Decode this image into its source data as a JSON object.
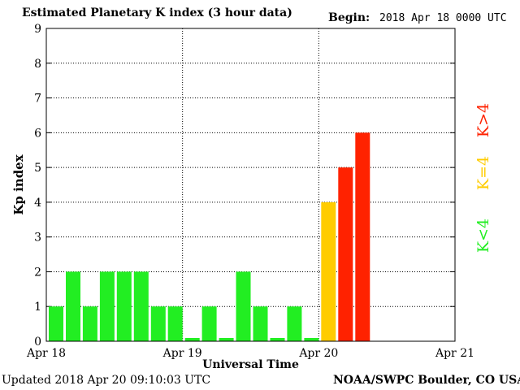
{
  "header": {
    "title": "Estimated Planetary K index (3 hour data)",
    "begin_label": "Begin:",
    "begin_value": "2018 Apr 18 0000 UTC"
  },
  "footer": {
    "updated": "Updated 2018 Apr 20 09:10:03 UTC",
    "source": "NOAA/SWPC Boulder, CO USA"
  },
  "legend": [
    {
      "label": "K<4",
      "color": "#22ee22"
    },
    {
      "label": "K=4",
      "color": "#ffcc00"
    },
    {
      "label": "K>4",
      "color": "#ff2200"
    }
  ],
  "colors": {
    "low": "#22ee22",
    "medium": "#ffcc00",
    "high": "#ff2200",
    "grid": "#000000"
  },
  "chart_data": {
    "type": "bar",
    "xlabel": "Universal Time",
    "ylabel": "Kp index",
    "ylim": [
      0,
      9
    ],
    "yticks": [
      0,
      1,
      2,
      3,
      4,
      5,
      6,
      7,
      8,
      9
    ],
    "xtick_labels": [
      "Apr 18",
      "Apr 19",
      "Apr 20",
      "Apr 21"
    ],
    "grid": "dotted",
    "legend_position": "right",
    "bars_per_day": 8,
    "values": [
      1,
      2,
      1,
      2,
      2,
      2,
      1,
      1,
      0,
      1,
      0,
      2,
      1,
      0,
      1,
      0,
      4,
      5,
      6
    ]
  }
}
